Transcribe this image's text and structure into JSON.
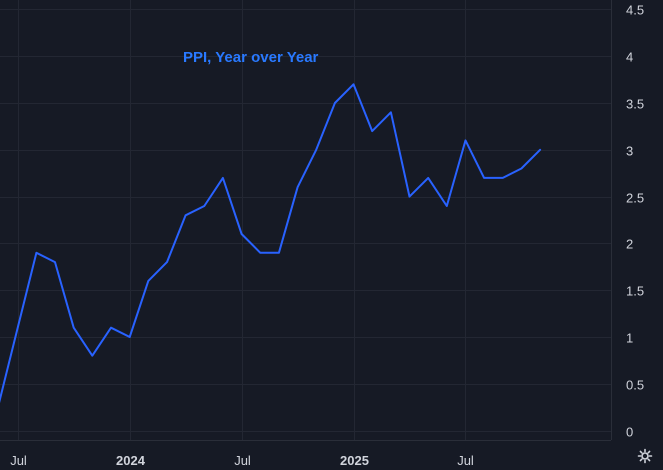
{
  "chart_data": {
    "type": "line",
    "title": "PPI, Year over Year",
    "xlabel": "",
    "ylabel": "",
    "x_ticks": [
      {
        "label": "Jul",
        "x": 6,
        "bold": false
      },
      {
        "label": "2024",
        "x": 12,
        "bold": true
      },
      {
        "label": "Jul",
        "x": 18,
        "bold": false
      },
      {
        "label": "2025",
        "x": 24,
        "bold": true
      },
      {
        "label": "Jul",
        "x": 30,
        "bold": false
      }
    ],
    "y_ticks": [
      "0",
      "0.5",
      "1",
      "1.5",
      "2",
      "2.5",
      "3",
      "3.5",
      "4",
      "4.5"
    ],
    "xlim": [
      5.05,
      37.8
    ],
    "ylim": [
      -0.1,
      4.6
    ],
    "grid": true,
    "series": [
      {
        "x": [
          5,
          6,
          7,
          8,
          9,
          10,
          11,
          12,
          13,
          14,
          15,
          16,
          17,
          18,
          19,
          20,
          21,
          22,
          23,
          24,
          25,
          26,
          27,
          28,
          29,
          30,
          31,
          32,
          33,
          34
        ],
        "values": [
          0.3,
          1.1,
          1.9,
          1.8,
          1.1,
          0.8,
          1.1,
          1.0,
          1.6,
          1.8,
          2.3,
          2.4,
          2.7,
          2.1,
          1.9,
          1.9,
          2.6,
          3.0,
          3.5,
          3.7,
          3.2,
          3.4,
          2.5,
          2.7,
          2.4,
          3.1,
          2.7,
          2.7,
          2.8,
          3.0
        ]
      }
    ]
  },
  "colors": {
    "background": "#161a25",
    "line": "#2962ff",
    "title": "#2979ff",
    "grid": "#232733",
    "text": "#d1d4dc"
  },
  "icons": {
    "corner": "gear-icon"
  }
}
